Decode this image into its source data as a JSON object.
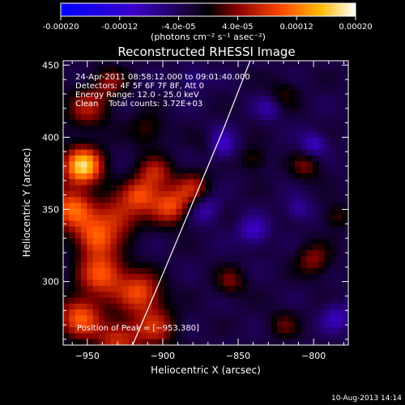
{
  "colorbar": {
    "ticks": [
      -0.0002,
      -0.00012,
      -4e-05,
      4e-05,
      0.00012,
      0.0002
    ],
    "tick_labels": [
      "-0.00020",
      "-0.00012",
      "-4.0e-05",
      "4.0e-05",
      "0.00012",
      "0.00020"
    ],
    "unit_label": "(photons cm⁻² s⁻¹ asec⁻²)",
    "range": [
      -0.0002,
      0.0002
    ]
  },
  "chart_data": {
    "type": "heatmap",
    "title": "Reconstructed RHESSI Image",
    "xlabel": "Heliocentric X (arcsec)",
    "ylabel": "Heliocentric Y (arcsec)",
    "xlim": [
      -966,
      -777
    ],
    "ylim": [
      256,
      453
    ],
    "x_ticks": [
      -950,
      -900,
      -850,
      -800
    ],
    "y_ticks": [
      300,
      350,
      400,
      450
    ],
    "x_tick_labels": [
      "−950",
      "−900",
      "−850",
      "−800"
    ],
    "y_tick_labels": [
      "300",
      "350",
      "400",
      "450"
    ],
    "annotations": [
      "24-Apr-2011 08:58:12.000 to 09:01:40.000",
      "Detectors: 4F 5F 6F 7F 8F, Att 0",
      "Energy Range: 12.0 - 25.0 keV",
      "Clean    Total counts: 3.72E+03"
    ],
    "peak_label": "Position of Peak = [−953,380]",
    "peak": [
      -953,
      380
    ],
    "limb_curve": [
      [
        -920,
        256
      ],
      [
        -900,
        305
      ],
      [
        -880,
        355
      ],
      [
        -860,
        405
      ],
      [
        -842,
        453
      ]
    ],
    "sources": [
      {
        "x": -953,
        "y": 380,
        "amp": 0.0002,
        "w": 9
      },
      {
        "x": -960,
        "y": 350,
        "amp": 0.00014,
        "w": 10
      },
      {
        "x": -945,
        "y": 330,
        "amp": 0.00012,
        "w": 9
      },
      {
        "x": -930,
        "y": 345,
        "amp": 0.0001,
        "w": 10
      },
      {
        "x": -915,
        "y": 360,
        "amp": 0.00011,
        "w": 8
      },
      {
        "x": -905,
        "y": 375,
        "amp": 9e-05,
        "w": 8
      },
      {
        "x": -895,
        "y": 352,
        "amp": 0.00012,
        "w": 9
      },
      {
        "x": -880,
        "y": 365,
        "amp": 8e-05,
        "w": 8
      },
      {
        "x": -940,
        "y": 305,
        "amp": 0.00013,
        "w": 11
      },
      {
        "x": -915,
        "y": 292,
        "amp": 0.00012,
        "w": 10
      },
      {
        "x": -905,
        "y": 268,
        "amp": 9e-05,
        "w": 10
      },
      {
        "x": -955,
        "y": 275,
        "amp": 0.00013,
        "w": 10
      },
      {
        "x": -930,
        "y": 260,
        "amp": 0.0001,
        "w": 10
      },
      {
        "x": -950,
        "y": 420,
        "amp": 8e-05,
        "w": 10
      },
      {
        "x": -935,
        "y": 438,
        "amp": 6e-05,
        "w": 8
      },
      {
        "x": -910,
        "y": 405,
        "amp": 5e-05,
        "w": 8
      },
      {
        "x": -870,
        "y": 395,
        "amp": 4e-05,
        "w": 6
      },
      {
        "x": -840,
        "y": 385,
        "amp": 5e-05,
        "w": 6
      },
      {
        "x": -855,
        "y": 300,
        "amp": 6e-05,
        "w": 7
      },
      {
        "x": -805,
        "y": 380,
        "amp": 6e-05,
        "w": 7
      },
      {
        "x": -800,
        "y": 315,
        "amp": 7e-05,
        "w": 8
      },
      {
        "x": -785,
        "y": 345,
        "amp": 5e-05,
        "w": 6
      },
      {
        "x": -820,
        "y": 270,
        "amp": 5e-05,
        "w": 7
      },
      {
        "x": -820,
        "y": 430,
        "amp": 4e-05,
        "w": 7
      },
      {
        "x": -862,
        "y": 395,
        "amp": -8e-05,
        "w": 7
      },
      {
        "x": -872,
        "y": 350,
        "amp": -6e-05,
        "w": 7
      },
      {
        "x": -840,
        "y": 335,
        "amp": -7e-05,
        "w": 7
      },
      {
        "x": -800,
        "y": 395,
        "amp": -7e-05,
        "w": 6
      },
      {
        "x": -785,
        "y": 275,
        "amp": -6e-05,
        "w": 7
      },
      {
        "x": -830,
        "y": 420,
        "amp": -5e-05,
        "w": 6
      },
      {
        "x": -880,
        "y": 440,
        "amp": -4e-05,
        "w": 6
      },
      {
        "x": -810,
        "y": 350,
        "amp": -5e-05,
        "w": 6
      }
    ]
  },
  "footer": {
    "timestamp": "10-Aug-2013 14:14"
  }
}
